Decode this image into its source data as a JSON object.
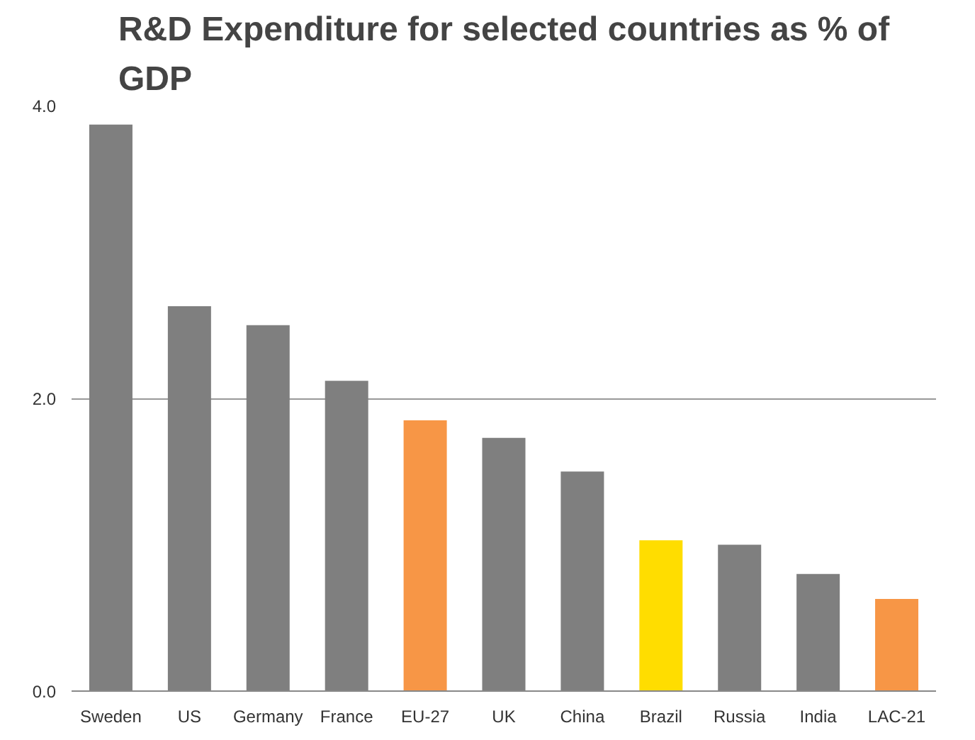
{
  "chart_data": {
    "type": "bar",
    "title": "R&D Expenditure for selected countries as % of GDP",
    "categories": [
      "Sweden",
      "US",
      "Germany",
      "France",
      "EU-27",
      "UK",
      "China",
      "Brazil",
      "Russia",
      "India",
      "LAC-21"
    ],
    "values": [
      3.87,
      2.63,
      2.5,
      2.12,
      1.85,
      1.73,
      1.5,
      1.03,
      1.0,
      0.8,
      0.63
    ],
    "colors": [
      "#7f7f7f",
      "#7f7f7f",
      "#7f7f7f",
      "#7f7f7f",
      "#f79646",
      "#7f7f7f",
      "#7f7f7f",
      "#ffdd00",
      "#7f7f7f",
      "#7f7f7f",
      "#f79646"
    ],
    "ylim": [
      0,
      4
    ],
    "yticks": [
      {
        "value": 0,
        "label": "0.0"
      },
      {
        "value": 2,
        "label": "2.0"
      },
      {
        "value": 4,
        "label": "4.0"
      }
    ],
    "grid": "y"
  }
}
